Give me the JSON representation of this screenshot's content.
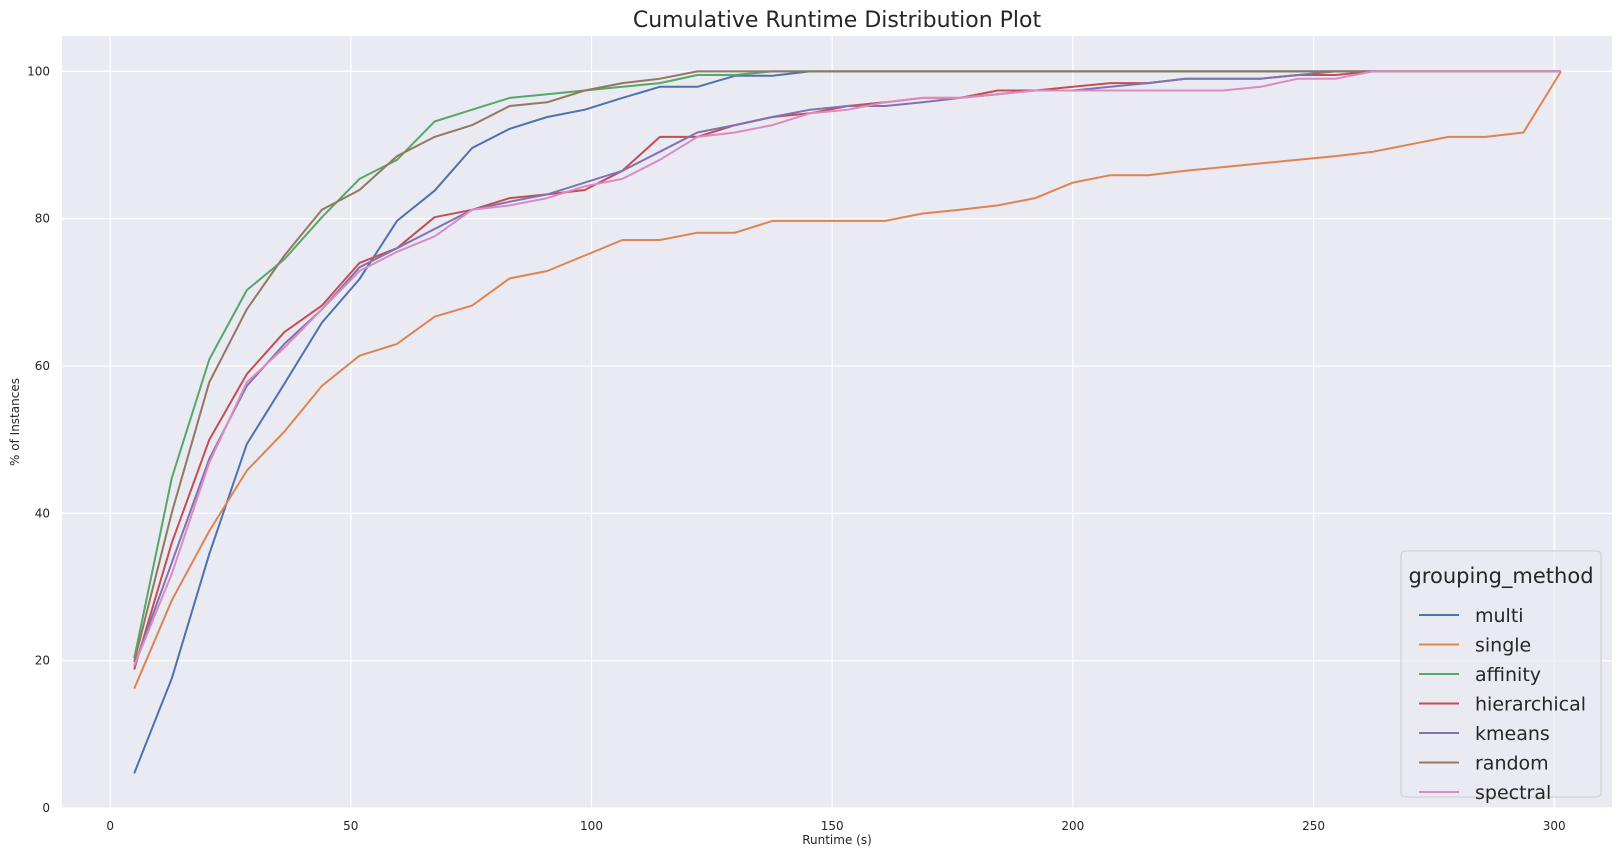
{
  "chart_data": {
    "type": "line",
    "title": "Cumulative Runtime Distribution Plot",
    "xlabel": "Runtime (s)",
    "ylabel": "% of Instances",
    "xlim": [
      -10,
      312
    ],
    "ylim": [
      0,
      104.8
    ],
    "xticks": [
      0,
      50,
      100,
      150,
      200,
      250,
      300
    ],
    "yticks": [
      0,
      20,
      40,
      60,
      80,
      100
    ],
    "grid": true,
    "legend": {
      "title": "grouping_method",
      "position": "lower-right"
    },
    "x": [
      5,
      12.8,
      20.6,
      28.4,
      36.2,
      44,
      51.8,
      59.6,
      67.4,
      75.2,
      83,
      90.8,
      98.6,
      106.4,
      114.2,
      122,
      129.8,
      137.6,
      145.4,
      153.2,
      161,
      168.8,
      176.6,
      184.4,
      192.2,
      200,
      207.8,
      215.6,
      223.4,
      231.2,
      239,
      246.8,
      254.6,
      262.4,
      270.2,
      278,
      285.8,
      293.6,
      301.4
    ],
    "series": [
      {
        "name": "multi",
        "color": "#4c72b0",
        "values": [
          4.7,
          17.6,
          34.5,
          49.4,
          57.6,
          65.9,
          71.8,
          79.7,
          83.8,
          89.6,
          92.2,
          93.8,
          94.8,
          96.4,
          97.9,
          97.9,
          99.4,
          99.4,
          100,
          100,
          100,
          100,
          100,
          100,
          100,
          100,
          100,
          100,
          100,
          100,
          100,
          100,
          100,
          100,
          100,
          100,
          100,
          100,
          100
        ]
      },
      {
        "name": "single",
        "color": "#dd8452",
        "values": [
          16.2,
          28.2,
          37.6,
          45.8,
          51.1,
          57.3,
          61.4,
          63.0,
          66.7,
          68.2,
          71.9,
          72.9,
          75.0,
          77.1,
          77.1,
          78.1,
          78.1,
          79.7,
          79.7,
          79.7,
          79.7,
          80.7,
          81.2,
          81.8,
          82.8,
          84.9,
          85.9,
          85.9,
          86.5,
          87.0,
          87.5,
          88.0,
          88.5,
          89.1,
          90.1,
          91.1,
          91.1,
          91.7,
          100
        ]
      },
      {
        "name": "affinity",
        "color": "#55a868",
        "values": [
          20.3,
          44.8,
          60.9,
          70.3,
          74.5,
          80.2,
          85.4,
          88.0,
          93.2,
          94.8,
          96.4,
          96.9,
          97.4,
          97.9,
          98.4,
          99.5,
          99.5,
          100,
          100,
          100,
          100,
          100,
          100,
          100,
          100,
          100,
          100,
          100,
          100,
          100,
          100,
          100,
          100,
          100,
          100,
          100,
          100,
          100,
          100
        ]
      },
      {
        "name": "hierarchical",
        "color": "#c44e52",
        "values": [
          18.8,
          36.0,
          50.0,
          58.9,
          64.6,
          68.2,
          74.0,
          76.0,
          80.2,
          81.2,
          82.8,
          83.3,
          83.9,
          86.5,
          91.1,
          91.1,
          92.7,
          93.8,
          94.3,
          95.3,
          95.8,
          96.4,
          96.4,
          97.4,
          97.4,
          97.9,
          98.4,
          98.4,
          99.0,
          99.0,
          99.0,
          99.5,
          99.5,
          100,
          100,
          100,
          100,
          100,
          100
        ]
      },
      {
        "name": "kmeans",
        "color": "#8172b3",
        "values": [
          19.3,
          33.3,
          47.4,
          57.3,
          63.0,
          67.7,
          73.4,
          76.0,
          78.6,
          81.2,
          82.3,
          83.3,
          84.9,
          86.5,
          89.1,
          91.7,
          92.7,
          93.8,
          94.8,
          95.3,
          95.3,
          95.8,
          96.4,
          96.9,
          97.4,
          97.4,
          97.9,
          98.4,
          99.0,
          99.0,
          99.0,
          99.5,
          100,
          100,
          100,
          100,
          100,
          100,
          100
        ]
      },
      {
        "name": "random",
        "color": "#937860",
        "values": [
          19.8,
          40.1,
          57.8,
          67.7,
          75.0,
          81.2,
          83.9,
          88.5,
          91.1,
          92.7,
          95.3,
          95.8,
          97.4,
          98.4,
          99.0,
          100,
          100,
          100,
          100,
          100,
          100,
          100,
          100,
          100,
          100,
          100,
          100,
          100,
          100,
          100,
          100,
          100,
          100,
          100,
          100,
          100,
          100,
          100,
          100
        ]
      },
      {
        "name": "spectral",
        "color": "#da8bc3",
        "values": [
          19.3,
          31.8,
          46.9,
          57.8,
          62.5,
          67.7,
          72.9,
          75.5,
          77.6,
          81.2,
          81.8,
          82.8,
          84.4,
          85.4,
          88.0,
          91.1,
          91.7,
          92.7,
          94.3,
          94.8,
          95.8,
          96.4,
          96.4,
          96.9,
          97.4,
          97.4,
          97.4,
          97.4,
          97.4,
          97.4,
          97.9,
          99.0,
          99.0,
          100,
          100,
          100,
          100,
          100,
          100
        ]
      }
    ]
  }
}
